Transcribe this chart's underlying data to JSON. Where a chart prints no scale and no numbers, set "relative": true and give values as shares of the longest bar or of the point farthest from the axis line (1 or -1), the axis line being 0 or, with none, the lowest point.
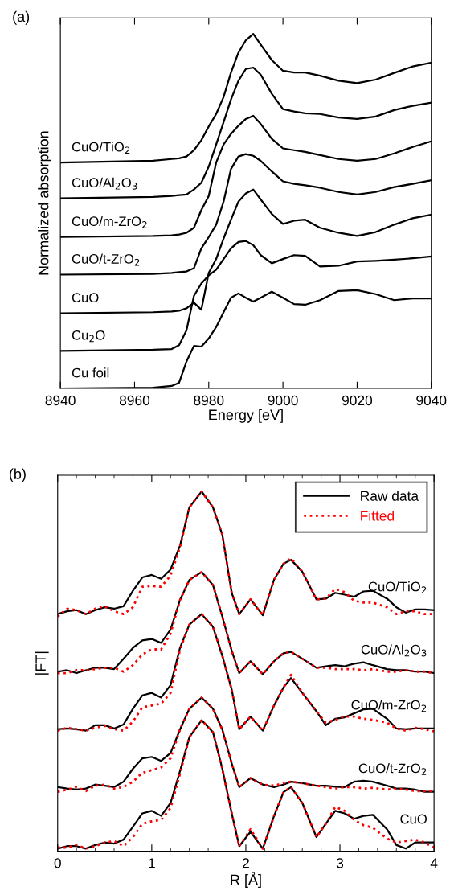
{
  "chart_data": [
    {
      "type": "line",
      "title": "(a)",
      "xlabel": "Energy [eV]",
      "ylabel": "Normalized absorption",
      "relative": true,
      "xlim": [
        8940,
        9040
      ],
      "xticks": [
        8940,
        8960,
        8980,
        9000,
        9020,
        9040
      ],
      "grid": false,
      "legend": false,
      "marker": "none",
      "x": [
        8940,
        8965,
        8970,
        8972,
        8974,
        8976,
        8978,
        8980,
        8982,
        8984,
        8986,
        8988,
        8990,
        8992,
        8994,
        8997,
        9000,
        9003,
        9006,
        9010,
        9015,
        9020,
        9025,
        9030,
        9035,
        9040
      ],
      "series": [
        {
          "name": "CuO/TiO$_{2}$",
          "color": "#000000",
          "line_style": "solid",
          "values": [
            0.637,
            0.642,
            0.647,
            0.649,
            0.654,
            0.672,
            0.7,
            0.739,
            0.774,
            0.822,
            0.891,
            0.947,
            0.982,
            1.0,
            0.97,
            0.926,
            0.896,
            0.891,
            0.891,
            0.882,
            0.868,
            0.861,
            0.871,
            0.89,
            0.908,
            0.919
          ]
        },
        {
          "name": "CuO/Al$_{2}$O$_{3}$",
          "color": "#000000",
          "line_style": "solid",
          "values": [
            0.536,
            0.54,
            0.543,
            0.545,
            0.547,
            0.561,
            0.58,
            0.626,
            0.688,
            0.751,
            0.815,
            0.868,
            0.901,
            0.905,
            0.885,
            0.831,
            0.788,
            0.781,
            0.776,
            0.774,
            0.764,
            0.76,
            0.767,
            0.785,
            0.797,
            0.806
          ]
        },
        {
          "name": "CuO/m-ZrO$_{2}$",
          "color": "#000000",
          "line_style": "solid",
          "values": [
            0.427,
            0.43,
            0.432,
            0.434,
            0.439,
            0.453,
            0.503,
            0.543,
            0.637,
            0.688,
            0.718,
            0.741,
            0.76,
            0.769,
            0.746,
            0.704,
            0.677,
            0.672,
            0.667,
            0.658,
            0.647,
            0.642,
            0.647,
            0.663,
            0.681,
            0.697
          ]
        },
        {
          "name": "CuO/t-ZrO$_{2}$",
          "color": "#000000",
          "line_style": "solid",
          "values": [
            0.321,
            0.323,
            0.326,
            0.328,
            0.33,
            0.339,
            0.395,
            0.427,
            0.462,
            0.527,
            0.619,
            0.654,
            0.661,
            0.656,
            0.642,
            0.612,
            0.584,
            0.577,
            0.573,
            0.566,
            0.554,
            0.547,
            0.554,
            0.568,
            0.577,
            0.587
          ]
        },
        {
          "name": "CuO",
          "color": "#000000",
          "line_style": "solid",
          "values": [
            0.212,
            0.215,
            0.217,
            0.219,
            0.226,
            0.242,
            0.222,
            0.326,
            0.365,
            0.423,
            0.476,
            0.527,
            0.55,
            0.561,
            0.533,
            0.492,
            0.464,
            0.473,
            0.476,
            0.453,
            0.439,
            0.43,
            0.441,
            0.462,
            0.48,
            0.49
          ]
        },
        {
          "name": "Cu$_{2}$O",
          "color": "#000000",
          "line_style": "solid",
          "values": [
            0.106,
            0.109,
            0.111,
            0.122,
            0.164,
            0.261,
            0.296,
            0.319,
            0.335,
            0.365,
            0.395,
            0.413,
            0.416,
            0.404,
            0.376,
            0.353,
            0.365,
            0.376,
            0.374,
            0.344,
            0.346,
            0.358,
            0.36,
            0.363,
            0.367,
            0.372
          ]
        },
        {
          "name": "Cu foil",
          "color": "#000000",
          "line_style": "solid",
          "values": [
            0,
            0.002,
            0.007,
            0.016,
            0.076,
            0.12,
            0.118,
            0.141,
            0.173,
            0.215,
            0.256,
            0.268,
            0.256,
            0.245,
            0.256,
            0.273,
            0.256,
            0.238,
            0.236,
            0.249,
            0.275,
            0.277,
            0.266,
            0.249,
            0.254,
            0.254
          ]
        }
      ]
    },
    {
      "type": "line",
      "title": "(b)",
      "xlabel": "R [Å]",
      "ylabel": "|FT|",
      "relative": true,
      "xlim": [
        0,
        4
      ],
      "xticks": [
        0,
        {
          "value": 0.2,
          "label": null
        },
        {
          "value": 0.4,
          "label": null
        },
        {
          "value": 0.6,
          "label": null
        },
        {
          "value": 0.8,
          "label": null
        },
        1,
        {
          "value": 1.2,
          "label": null
        },
        {
          "value": 1.4,
          "label": null
        },
        {
          "value": 1.6,
          "label": null
        },
        {
          "value": 1.8,
          "label": null
        },
        2,
        {
          "value": 2.2,
          "label": null
        },
        {
          "value": 2.4,
          "label": null
        },
        {
          "value": 2.6,
          "label": null
        },
        {
          "value": 2.8,
          "label": null
        },
        3,
        {
          "value": 3.2,
          "label": null
        },
        {
          "value": 3.4,
          "label": null
        },
        {
          "value": 3.6,
          "label": null
        },
        {
          "value": 3.8,
          "label": null
        },
        4
      ],
      "grid": false,
      "legend": "top right",
      "marker": "none",
      "x": [
        0,
        0.1,
        0.2,
        0.3,
        0.4,
        0.5,
        0.6,
        0.7,
        0.8,
        0.9,
        1.0,
        1.1,
        1.2,
        1.3,
        1.4,
        1.53,
        1.65,
        1.75,
        1.85,
        1.93,
        2.05,
        2.18,
        2.3,
        2.4,
        2.48,
        2.6,
        2.75,
        2.85,
        2.95,
        3.05,
        3.15,
        3.25,
        3.35,
        3.5,
        3.6,
        3.7,
        3.8,
        3.9,
        4.0
      ],
      "series": [
        {
          "name": "Raw data",
          "color": "#000000",
          "line_style": "solid",
          "values": [
            0.659,
            0.667,
            0.67,
            0.659,
            0.67,
            0.678,
            0.674,
            0.681,
            0.724,
            0.761,
            0.768,
            0.757,
            0.783,
            0.849,
            0.956,
            1.0,
            0.956,
            0.88,
            0.718,
            0.659,
            0.7,
            0.656,
            0.755,
            0.799,
            0.81,
            0.777,
            0.7,
            0.702,
            0.718,
            0.713,
            0.707,
            0.722,
            0.724,
            0.702,
            0.678,
            0.663,
            0.672,
            0.672,
            0.67
          ]
        },
        {
          "name": "Fitted",
          "color": "#ff0000",
          "line_style": "dotted",
          "values": [
            0.652,
            0.674,
            0.67,
            0.659,
            0.674,
            0.681,
            0.667,
            0.659,
            0.678,
            0.735,
            0.737,
            0.735,
            0.766,
            0.845,
            0.956,
            1.0,
            0.956,
            0.88,
            0.718,
            0.659,
            0.7,
            0.656,
            0.755,
            0.799,
            0.814,
            0.777,
            0.7,
            0.702,
            0.729,
            0.72,
            0.696,
            0.691,
            0.691,
            0.678,
            0.659,
            0.667,
            0.667,
            0.659,
            0.659
          ]
        },
        {
          "color": "#000000",
          "line_style": "solid",
          "values": [
            0.499,
            0.503,
            0.495,
            0.503,
            0.51,
            0.51,
            0.506,
            0.535,
            0.565,
            0.586,
            0.59,
            0.579,
            0.616,
            0.698,
            0.754,
            0.776,
            0.74,
            0.652,
            0.557,
            0.495,
            0.528,
            0.492,
            0.528,
            0.55,
            0.554,
            0.535,
            0.51,
            0.514,
            0.517,
            0.514,
            0.521,
            0.525,
            0.517,
            0.506,
            0.503,
            0.503,
            0.499,
            0.499,
            0.495
          ]
        },
        {
          "color": "#ff0000",
          "line_style": "dotted",
          "values": [
            0.495,
            0.495,
            0.503,
            0.503,
            0.506,
            0.51,
            0.51,
            0.499,
            0.517,
            0.547,
            0.561,
            0.561,
            0.605,
            0.698,
            0.754,
            0.776,
            0.74,
            0.652,
            0.557,
            0.495,
            0.528,
            0.492,
            0.528,
            0.55,
            0.554,
            0.535,
            0.51,
            0.51,
            0.506,
            0.506,
            0.506,
            0.503,
            0.506,
            0.499,
            0.499,
            0.503,
            0.499,
            0.499,
            0.495
          ]
        },
        {
          "color": "#000000",
          "line_style": "solid",
          "values": [
            0.339,
            0.341,
            0.339,
            0.335,
            0.35,
            0.35,
            0.341,
            0.352,
            0.396,
            0.433,
            0.44,
            0.427,
            0.462,
            0.565,
            0.63,
            0.659,
            0.624,
            0.543,
            0.449,
            0.339,
            0.374,
            0.335,
            0.405,
            0.455,
            0.481,
            0.44,
            0.389,
            0.35,
            0.368,
            0.372,
            0.383,
            0.394,
            0.396,
            0.368,
            0.341,
            0.339,
            0.341,
            0.341,
            0.341
          ]
        },
        {
          "color": "#ff0000",
          "line_style": "dotted",
          "values": [
            0.335,
            0.343,
            0.339,
            0.335,
            0.343,
            0.348,
            0.339,
            0.335,
            0.36,
            0.4,
            0.405,
            0.41,
            0.44,
            0.56,
            0.63,
            0.659,
            0.624,
            0.543,
            0.449,
            0.339,
            0.374,
            0.335,
            0.405,
            0.455,
            0.49,
            0.44,
            0.389,
            0.357,
            0.365,
            0.374,
            0.374,
            0.368,
            0.365,
            0.357,
            0.341,
            0.335,
            0.343,
            0.339,
            0.333
          ]
        },
        {
          "color": "#000000",
          "line_style": "solid",
          "values": [
            0.178,
            0.174,
            0.171,
            0.174,
            0.185,
            0.182,
            0.178,
            0.193,
            0.229,
            0.258,
            0.262,
            0.251,
            0.273,
            0.338,
            0.396,
            0.427,
            0.396,
            0.338,
            0.244,
            0.178,
            0.203,
            0.185,
            0.178,
            0.185,
            0.193,
            0.189,
            0.182,
            0.182,
            0.179,
            0.178,
            0.193,
            0.196,
            0.193,
            0.182,
            0.174,
            0.174,
            0.171,
            0.165,
            0.165
          ]
        },
        {
          "color": "#ff0000",
          "line_style": "dotted",
          "values": [
            0.165,
            0.171,
            0.178,
            0.167,
            0.182,
            0.185,
            0.174,
            0.178,
            0.193,
            0.218,
            0.225,
            0.233,
            0.258,
            0.338,
            0.396,
            0.427,
            0.396,
            0.338,
            0.244,
            0.178,
            0.203,
            0.185,
            0.182,
            0.189,
            0.193,
            0.189,
            0.182,
            0.178,
            0.174,
            0.178,
            0.178,
            0.174,
            0.176,
            0.171,
            0.174,
            0.171,
            0.167,
            0.167,
            0.167
          ]
        },
        {
          "color": "#000000",
          "line_style": "solid",
          "values": [
            0.007,
            0.014,
            0.014,
            0.007,
            0.017,
            0.024,
            0.021,
            0.032,
            0.068,
            0.105,
            0.112,
            0.098,
            0.134,
            0.222,
            0.317,
            0.364,
            0.331,
            0.229,
            0.105,
            0.014,
            0.054,
            0.007,
            0.098,
            0.164,
            0.178,
            0.134,
            0.039,
            0.076,
            0.112,
            0.105,
            0.09,
            0.098,
            0.101,
            0.061,
            0.017,
            0.007,
            0.024,
            0.024,
            0.024
          ]
        },
        {
          "color": "#ff0000",
          "line_style": "dotted",
          "values": [
            0.01,
            0.01,
            0.017,
            0.007,
            0.014,
            0.024,
            0.028,
            0.014,
            0.039,
            0.076,
            0.083,
            0.087,
            0.12,
            0.215,
            0.317,
            0.364,
            0.331,
            0.229,
            0.105,
            0.014,
            0.061,
            0.007,
            0.098,
            0.164,
            0.178,
            0.134,
            0.039,
            0.076,
            0.123,
            0.112,
            0.087,
            0.072,
            0.065,
            0.035,
            0.024,
            0.028,
            0.032,
            0.024,
            0.01
          ]
        }
      ],
      "annotations": [
        "CuO/TiO$_{2}$",
        "CuO/Al$_{2}$O$_{3}$",
        "CuO/m-ZrO$_{2}$",
        "CuO/t-ZrO$_{2}$",
        "CuO"
      ]
    }
  ]
}
